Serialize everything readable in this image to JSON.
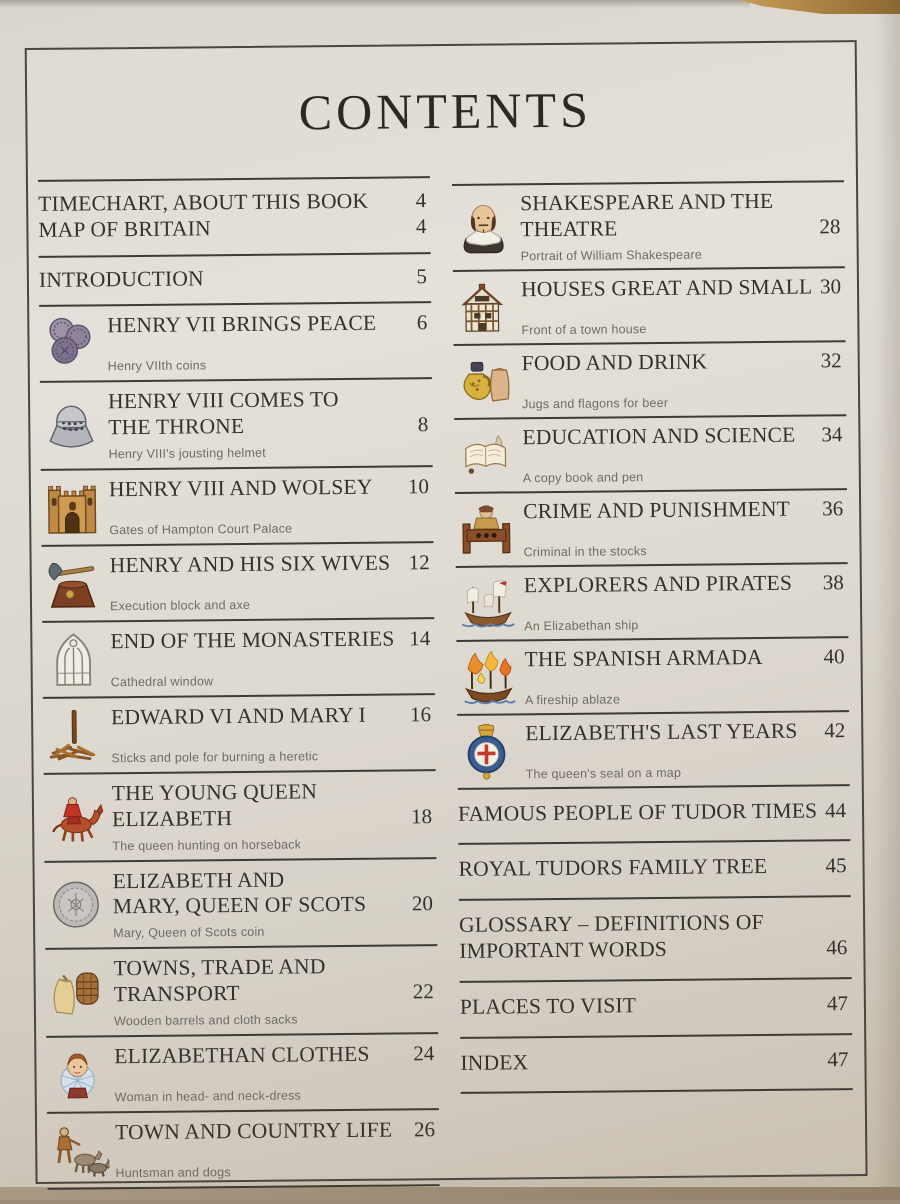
{
  "page": {
    "title": "CONTENTS"
  },
  "colors": {
    "paper": "#dedad3",
    "rule": "#3e3b35",
    "heading_text": "#34312b",
    "caption_text": "#6f6b64",
    "table_wood": "#8a6832"
  },
  "left_column": {
    "entries": [
      {
        "icon": null,
        "lines": [
          {
            "text": "TIMECHART, ABOUT THIS BOOK",
            "page": "4"
          },
          {
            "text": "MAP OF BRITAIN",
            "page": "4"
          }
        ],
        "caption": null
      },
      {
        "icon": null,
        "lines": [
          {
            "text": "INTRODUCTION",
            "page": "5"
          }
        ],
        "caption": null
      },
      {
        "icon": "coins-icon",
        "lines": [
          {
            "text": "HENRY VII BRINGS PEACE",
            "page": "6"
          }
        ],
        "caption": "Henry VIIth coins"
      },
      {
        "icon": "jousting-helmet-icon",
        "lines": [
          {
            "text": "HENRY VIII COMES TO",
            "page": null
          },
          {
            "text": "THE THRONE",
            "page": "8"
          }
        ],
        "caption": "Henry VIII's jousting helmet"
      },
      {
        "icon": "palace-gates-icon",
        "lines": [
          {
            "text": "HENRY VIII AND WOLSEY",
            "page": "10"
          }
        ],
        "caption": "Gates of Hampton Court Palace"
      },
      {
        "icon": "execution-block-icon",
        "lines": [
          {
            "text": "HENRY AND HIS SIX WIVES",
            "page": "12"
          }
        ],
        "caption": "Execution block and axe"
      },
      {
        "icon": "cathedral-window-icon",
        "lines": [
          {
            "text": "END OF THE MONASTERIES",
            "page": "14"
          }
        ],
        "caption": "Cathedral window"
      },
      {
        "icon": "heretic-sticks-icon",
        "lines": [
          {
            "text": "EDWARD VI AND MARY I",
            "page": "16"
          }
        ],
        "caption": "Sticks and pole for burning a heretic"
      },
      {
        "icon": "queen-horseback-icon",
        "lines": [
          {
            "text": "THE YOUNG QUEEN",
            "page": null
          },
          {
            "text": "ELIZABETH",
            "page": "18"
          }
        ],
        "caption": "The queen hunting on horseback"
      },
      {
        "icon": "scots-coin-icon",
        "lines": [
          {
            "text": "ELIZABETH AND",
            "page": null
          },
          {
            "text": "MARY, QUEEN OF SCOTS",
            "page": "20"
          }
        ],
        "caption": "Mary, Queen of Scots coin"
      },
      {
        "icon": "barrels-sacks-icon",
        "lines": [
          {
            "text": "TOWNS, TRADE AND",
            "page": null
          },
          {
            "text": "TRANSPORT",
            "page": "22"
          }
        ],
        "caption": "Wooden barrels and cloth sacks"
      },
      {
        "icon": "woman-ruff-icon",
        "lines": [
          {
            "text": "ELIZABETHAN CLOTHES",
            "page": "24"
          }
        ],
        "caption": "Woman in head- and neck-dress"
      },
      {
        "icon": "huntsman-dogs-icon",
        "lines": [
          {
            "text": "TOWN AND COUNTRY LIFE",
            "page": "26"
          }
        ],
        "caption": "Huntsman and dogs"
      }
    ]
  },
  "right_column": {
    "entries": [
      {
        "icon": "shakespeare-icon",
        "lines": [
          {
            "text": "SHAKESPEARE AND THE",
            "page": null
          },
          {
            "text": "THEATRE",
            "page": "28"
          }
        ],
        "caption": "Portrait of William Shakespeare"
      },
      {
        "icon": "town-house-icon",
        "lines": [
          {
            "text": "HOUSES GREAT AND SMALL",
            "page": "30"
          }
        ],
        "caption": "Front of a town house"
      },
      {
        "icon": "jugs-icon",
        "lines": [
          {
            "text": "FOOD AND DRINK",
            "page": "32"
          }
        ],
        "caption": "Jugs and flagons for beer"
      },
      {
        "icon": "copybook-icon",
        "lines": [
          {
            "text": "EDUCATION AND SCIENCE",
            "page": "34"
          }
        ],
        "caption": "A copy book and pen"
      },
      {
        "icon": "stocks-icon",
        "lines": [
          {
            "text": "CRIME AND PUNISHMENT",
            "page": "36"
          }
        ],
        "caption": "Criminal in the stocks"
      },
      {
        "icon": "ship-icon",
        "lines": [
          {
            "text": "EXPLORERS AND PIRATES",
            "page": "38"
          }
        ],
        "caption": "An Elizabethan ship"
      },
      {
        "icon": "fireship-icon",
        "lines": [
          {
            "text": "THE SPANISH ARMADA",
            "page": "40"
          }
        ],
        "caption": "A fireship ablaze"
      },
      {
        "icon": "royal-seal-icon",
        "lines": [
          {
            "text": "ELIZABETH'S LAST YEARS",
            "page": "42"
          }
        ],
        "caption": "The queen's seal on a map"
      },
      {
        "icon": null,
        "lines": [
          {
            "text": "FAMOUS PEOPLE OF TUDOR TIMES",
            "page": "44"
          }
        ],
        "caption": null
      },
      {
        "icon": null,
        "lines": [
          {
            "text": "ROYAL TUDORS FAMILY TREE",
            "page": "45"
          }
        ],
        "caption": null
      },
      {
        "icon": null,
        "lines": [
          {
            "text": "GLOSSARY – DEFINITIONS OF",
            "page": null
          },
          {
            "text": "IMPORTANT WORDS",
            "page": "46"
          }
        ],
        "caption": null
      },
      {
        "icon": null,
        "lines": [
          {
            "text": "PLACES TO VISIT",
            "page": "47"
          }
        ],
        "caption": null
      },
      {
        "icon": null,
        "lines": [
          {
            "text": "INDEX",
            "page": "47"
          }
        ],
        "caption": null
      }
    ]
  }
}
